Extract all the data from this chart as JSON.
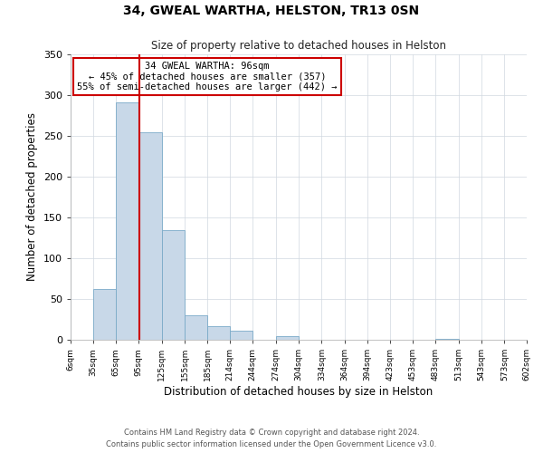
{
  "title": "34, GWEAL WARTHA, HELSTON, TR13 0SN",
  "subtitle": "Size of property relative to detached houses in Helston",
  "xlabel": "Distribution of detached houses by size in Helston",
  "ylabel": "Number of detached properties",
  "bin_edges": [
    6,
    35,
    65,
    95,
    125,
    155,
    185,
    214,
    244,
    274,
    304,
    334,
    364,
    394,
    423,
    453,
    483,
    513,
    543,
    573,
    602
  ],
  "counts": [
    0,
    62,
    291,
    254,
    134,
    30,
    17,
    11,
    0,
    4,
    0,
    0,
    0,
    0,
    0,
    0,
    1,
    0,
    0,
    0
  ],
  "bar_color": "#c8d8e8",
  "bar_edge_color": "#7aaac8",
  "property_size": 96,
  "vline_color": "#cc0000",
  "annotation_text": "34 GWEAL WARTHA: 96sqm\n← 45% of detached houses are smaller (357)\n55% of semi-detached houses are larger (442) →",
  "annotation_box_color": "#ffffff",
  "annotation_box_edge": "#cc0000",
  "ylim": [
    0,
    350
  ],
  "yticks": [
    0,
    50,
    100,
    150,
    200,
    250,
    300,
    350
  ],
  "tick_labels": [
    "6sqm",
    "35sqm",
    "65sqm",
    "95sqm",
    "125sqm",
    "155sqm",
    "185sqm",
    "214sqm",
    "244sqm",
    "274sqm",
    "304sqm",
    "334sqm",
    "364sqm",
    "394sqm",
    "423sqm",
    "453sqm",
    "483sqm",
    "513sqm",
    "543sqm",
    "573sqm",
    "602sqm"
  ],
  "footer_line1": "Contains HM Land Registry data © Crown copyright and database right 2024.",
  "footer_line2": "Contains public sector information licensed under the Open Government Licence v3.0.",
  "background_color": "#ffffff",
  "grid_color": "#d0d8e0"
}
